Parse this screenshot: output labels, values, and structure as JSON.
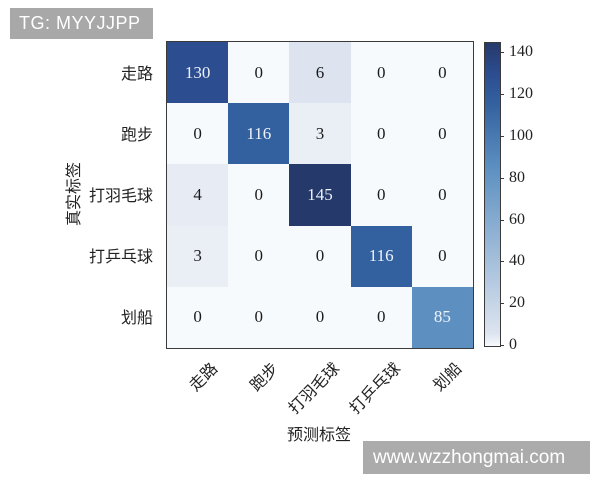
{
  "badge": {
    "text": "TG: MYYJJPP",
    "bg": "#a8a8a8",
    "fg": "#ffffff"
  },
  "watermark": {
    "text": "www.wzzhongmai.com",
    "bg": "#ababab",
    "fg": "#ffffff"
  },
  "chart_data": {
    "type": "heatmap",
    "title": "",
    "xlabel": "预测标签",
    "ylabel": "真实标签",
    "categories_x": [
      "走路",
      "跑步",
      "打羽毛球",
      "打乒乓球",
      "划船"
    ],
    "categories_y": [
      "走路",
      "跑步",
      "打羽毛球",
      "打乒乓球",
      "划船"
    ],
    "matrix": [
      [
        130,
        0,
        6,
        0,
        0
      ],
      [
        0,
        116,
        3,
        0,
        0
      ],
      [
        4,
        0,
        145,
        0,
        0
      ],
      [
        3,
        0,
        0,
        116,
        0
      ],
      [
        0,
        0,
        0,
        0,
        85
      ]
    ],
    "colorbar": {
      "ticks": [
        0,
        20,
        40,
        60,
        80,
        100,
        120,
        140
      ],
      "vmin": 0,
      "vmax": 145,
      "position": "right"
    },
    "color_anchors": [
      [
        0,
        "#f7fafd"
      ],
      [
        6,
        "#dde4ef"
      ],
      [
        85,
        "#5d90c1"
      ],
      [
        116,
        "#33619f"
      ],
      [
        130,
        "#2c4d90"
      ],
      [
        145,
        "#26396b"
      ]
    ],
    "white_text_threshold": 80,
    "cell_text_light": "#eef3f9",
    "cell_text_dark": "#1b1b1b",
    "border_color": "#3a3a3a",
    "grid": "off",
    "legend": "none"
  }
}
